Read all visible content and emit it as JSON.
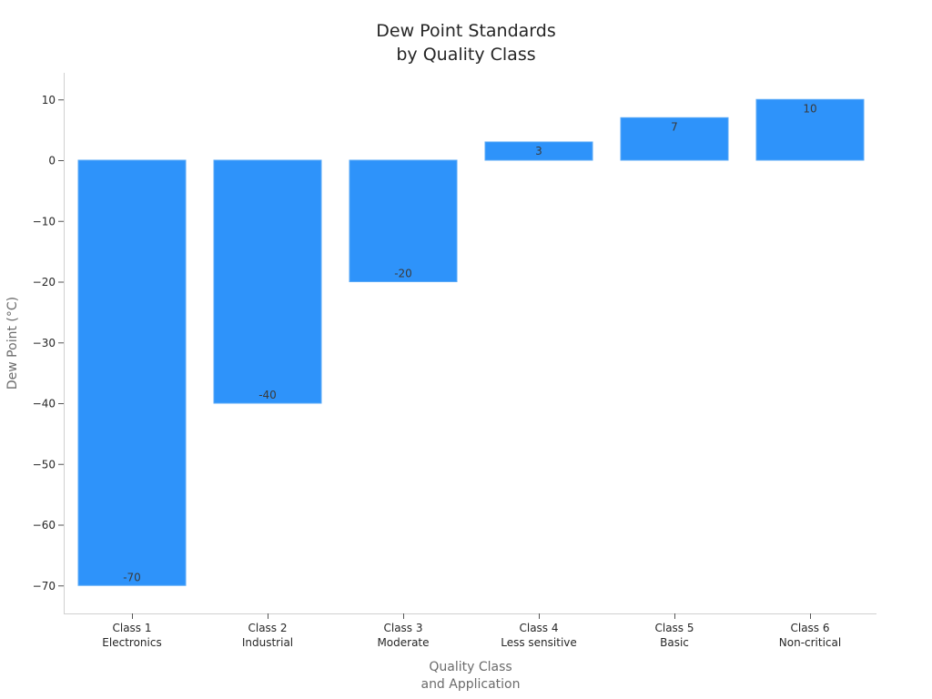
{
  "chart_data": {
    "type": "bar",
    "title": "Dew Point Standards\nby Quality Class",
    "title_lines": [
      "Dew Point Standards",
      "by Quality Class"
    ],
    "xlabel": "Quality Class\nand Application",
    "xlabel_lines": [
      "Quality Class",
      "and Application"
    ],
    "ylabel": "Dew Point (°C)",
    "categories": [
      "Class 1\nElectronics",
      "Class 2\nIndustrial",
      "Class 3\nModerate",
      "Class 4\nLess sensitive",
      "Class 5\nBasic",
      "Class 6\nNon-critical"
    ],
    "category_lines": [
      [
        "Class 1",
        "Electronics"
      ],
      [
        "Class 2",
        "Industrial"
      ],
      [
        "Class 3",
        "Moderate"
      ],
      [
        "Class 4",
        "Less sensitive"
      ],
      [
        "Class 5",
        "Basic"
      ],
      [
        "Class 6",
        "Non-critical"
      ]
    ],
    "values": [
      -70,
      -40,
      -20,
      3,
      7,
      10
    ],
    "data_labels": [
      "-70",
      "-40",
      "-20",
      "3",
      "7",
      "10"
    ],
    "ylim": [
      -74.5,
      14.5
    ],
    "yticks": [
      10,
      0,
      -10,
      -20,
      -30,
      -40,
      -50,
      -60,
      -70
    ],
    "ytick_labels": [
      "10",
      "0",
      "−10",
      "−20",
      "−30",
      "−40",
      "−50",
      "−60",
      "−70"
    ],
    "grid": false,
    "legend": null,
    "bar_color": "#2e93fa"
  }
}
